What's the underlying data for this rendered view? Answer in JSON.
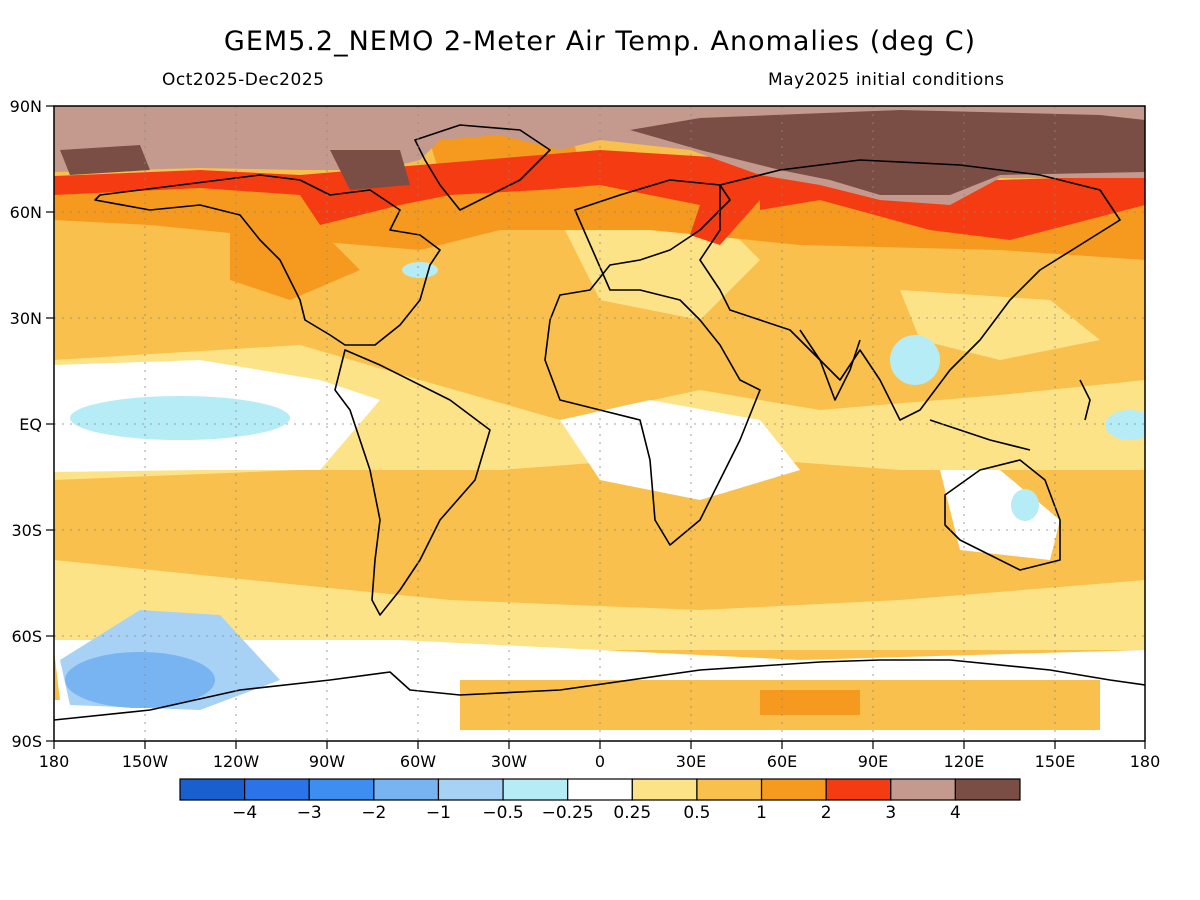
{
  "title": "GEM5.2_NEMO 2-Meter Air Temp. Anomalies (deg C)",
  "period": "Oct2025-Dec2025",
  "initial_conditions": "May2025 initial conditions",
  "lat_ticks": [
    "90N",
    "60N",
    "30N",
    "EQ",
    "30S",
    "60S",
    "90S"
  ],
  "lon_ticks": [
    "180",
    "150W",
    "120W",
    "90W",
    "60W",
    "30W",
    "0",
    "30E",
    "60E",
    "90E",
    "120E",
    "150E",
    "180"
  ],
  "colorbar": {
    "colors": [
      "#1a5fd0",
      "#2b73e8",
      "#3d8ef0",
      "#78b4f2",
      "#a7d1f5",
      "#b6ecf5",
      "#ffffff",
      "#fde388",
      "#f9c04d",
      "#f59a1e",
      "#f43b12",
      "#c49a8e",
      "#7a4e45"
    ],
    "labels": [
      "-4",
      "-3",
      "-2",
      "-1",
      "-0.5",
      "-0.25",
      "0.25",
      "0.5",
      "1",
      "2",
      "3",
      "4"
    ]
  }
}
